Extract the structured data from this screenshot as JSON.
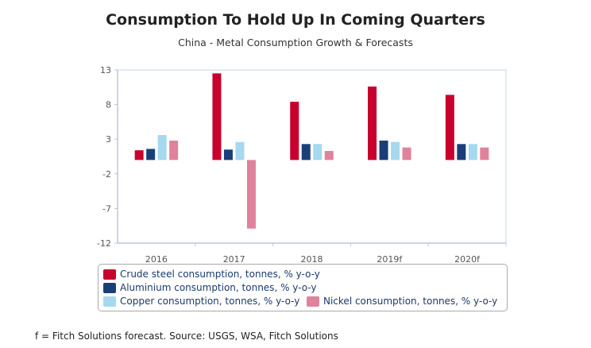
{
  "chart_data": {
    "type": "bar",
    "title": "Consumption To Hold Up In Coming Quarters",
    "subtitle": "China - Metal Consumption Growth & Forecasts",
    "xlabel": "",
    "ylabel": "",
    "categories": [
      "2016",
      "2017",
      "2018",
      "2019f",
      "2020f"
    ],
    "ylim": [
      -12,
      13
    ],
    "yticks": [
      "13",
      "8",
      "3",
      "-2",
      "-7",
      "-12"
    ],
    "series": [
      {
        "name": "Crude steel consumption, tonnes, % y-o-y",
        "color": "#c8002d",
        "values": [
          1.4,
          12.5,
          8.4,
          10.6,
          9.4
        ]
      },
      {
        "name": "Aluminium consumption, tonnes, % y-o-y",
        "color": "#1a3f78",
        "values": [
          1.6,
          1.5,
          2.3,
          2.8,
          2.3
        ]
      },
      {
        "name": "Copper consumption, tonnes, % y-o-y",
        "color": "#a6d8f0",
        "values": [
          3.6,
          2.6,
          2.3,
          2.6,
          2.3
        ]
      },
      {
        "name": "Nickel consumption, tonnes, % y-o-y",
        "color": "#e0829c",
        "values": [
          2.8,
          -9.9,
          1.3,
          1.8,
          1.8
        ]
      }
    ],
    "legend_position": "bottom",
    "grid": false
  },
  "footnote": "f = Fitch Solutions forecast. Source: USGS, WSA, Fitch Solutions"
}
